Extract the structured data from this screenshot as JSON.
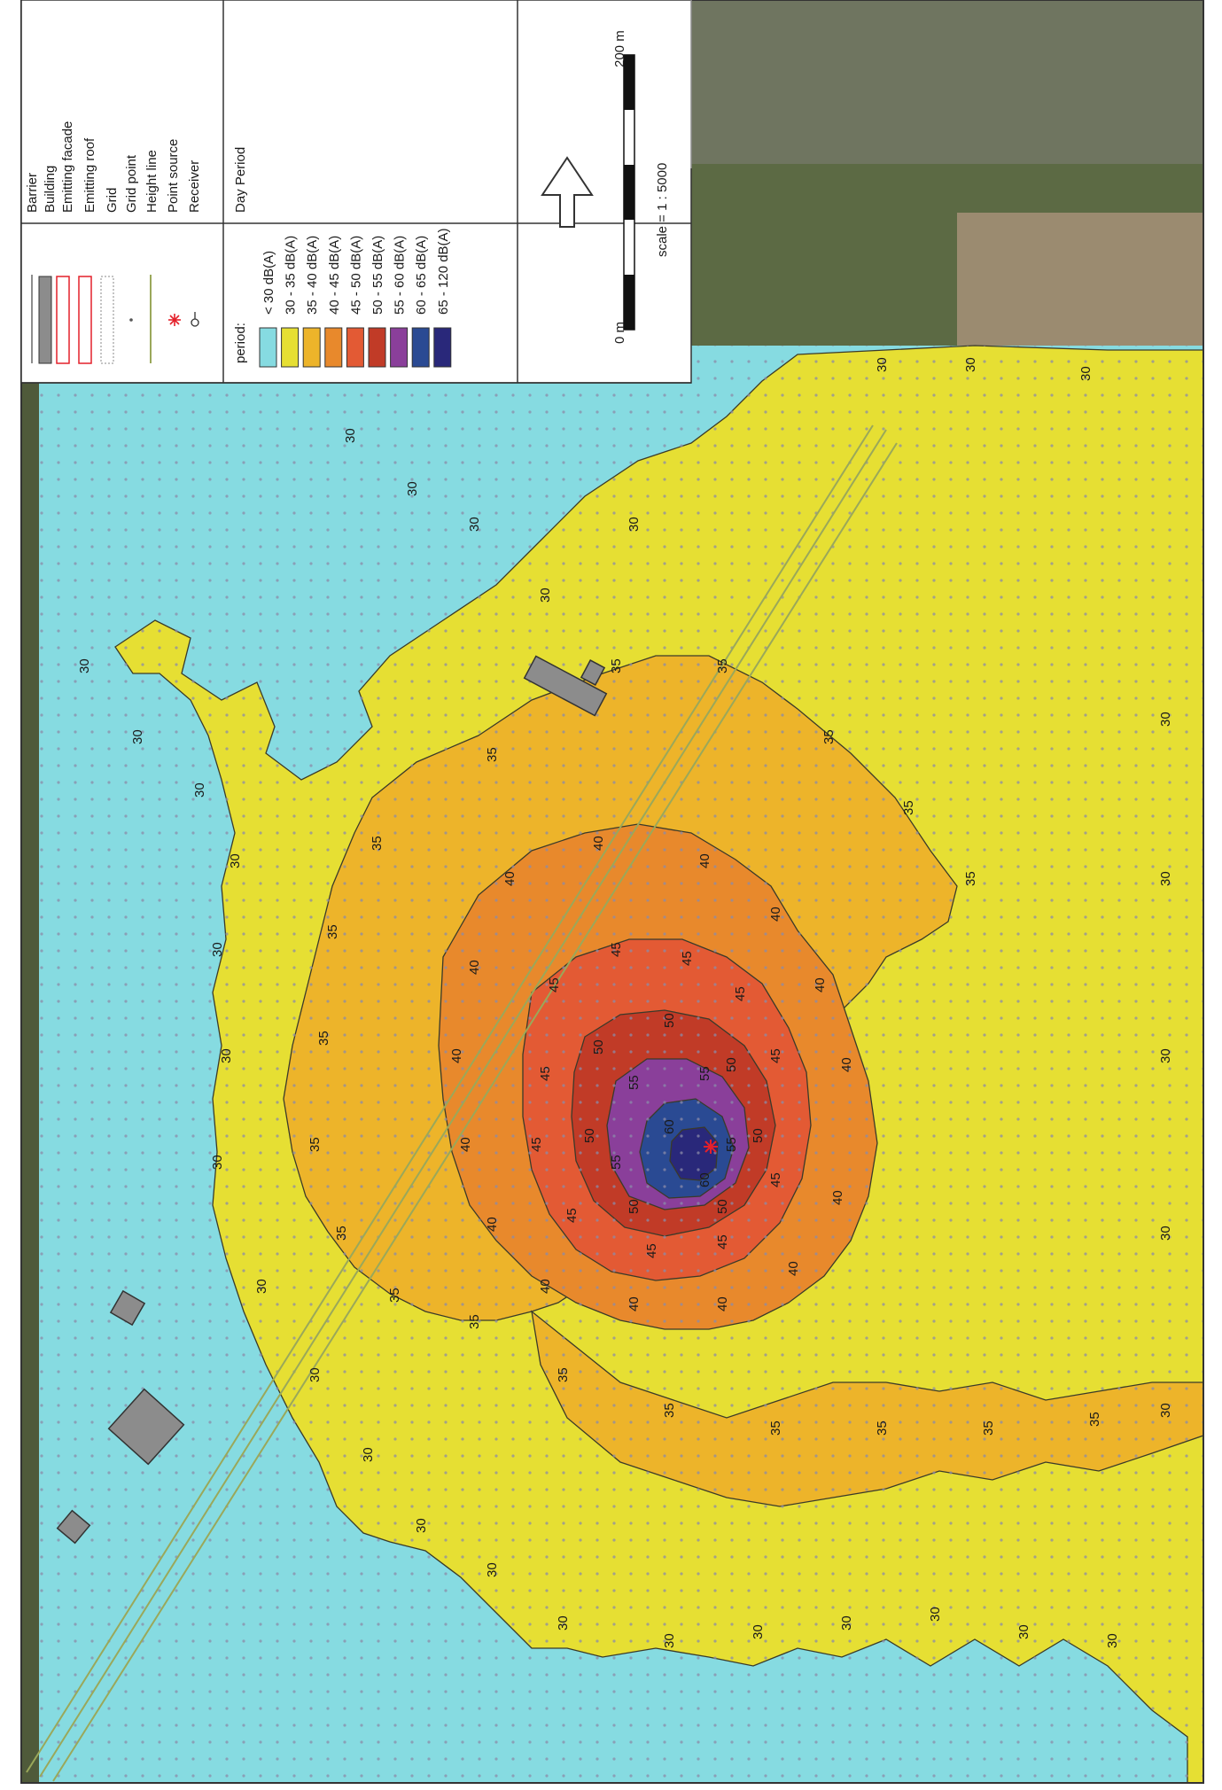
{
  "legend": {
    "symbols": [
      {
        "label": "Barrier",
        "icon": "barrier-line-icon"
      },
      {
        "label": "Building",
        "icon": "building-swatch-icon"
      },
      {
        "label": "Emitting facade",
        "icon": "emitting-facade-icon"
      },
      {
        "label": "Emitting roof",
        "icon": "emitting-roof-icon"
      },
      {
        "label": "Grid",
        "icon": "grid-frame-icon"
      },
      {
        "label": "Grid point",
        "icon": "grid-point-icon"
      },
      {
        "label": "Height line",
        "icon": "height-line-icon"
      },
      {
        "label": "Point source",
        "icon": "point-source-star-icon"
      },
      {
        "label": "Receiver",
        "icon": "receiver-flag-icon"
      }
    ],
    "period_label": "period:",
    "period_value": "Day Period",
    "classes": [
      {
        "label": "< 30 dB(A)",
        "color": "#86dbe1"
      },
      {
        "label": "30 - 35 dB(A)",
        "color": "#e6df33"
      },
      {
        "label": "35 - 40 dB(A)",
        "color": "#edb42a"
      },
      {
        "label": "40 - 45 dB(A)",
        "color": "#e8892c"
      },
      {
        "label": "45 - 50 dB(A)",
        "color": "#e35a34"
      },
      {
        "label": "50 - 55 dB(A)",
        "color": "#c13b27"
      },
      {
        "label": "55 - 60 dB(A)",
        "color": "#8a3f9a"
      },
      {
        "label": "60 - 65 dB(A)",
        "color": "#2a4a93"
      },
      {
        "label": "65 - 120 dB(A)",
        "color": "#29287a"
      }
    ],
    "scale_start": "0 m",
    "scale_end": "200 m",
    "scale_text": "scale = 1 : 5000",
    "north_icon": "north-arrow-icon"
  },
  "map": {
    "contour_labels": [
      "30",
      "35",
      "40",
      "45",
      "50",
      "55",
      "60"
    ],
    "colors": {
      "frame": "#333333",
      "contour_line": "#3a3a2a",
      "grid_point": "#8a8aa8",
      "building": "#8c8c8c",
      "corridor": "#9aa85a",
      "source": "#e4202a"
    }
  }
}
